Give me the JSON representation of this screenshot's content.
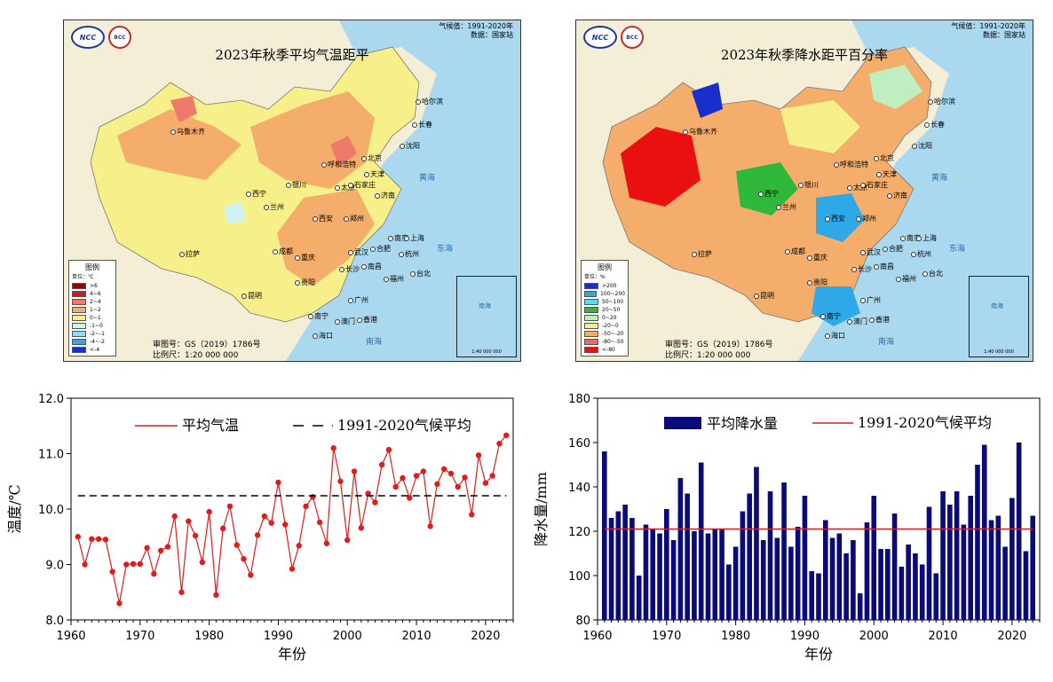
{
  "maps": [
    {
      "title": "2023年秋季平均气温距平",
      "meta_line1": "气候值：1991-2020年",
      "meta_line2": "数据：国家站",
      "logo_left": "NCC",
      "logo_right": "BCC",
      "legend_title": "图例",
      "legend_unit": "单位：℃",
      "legend_items": [
        {
          "label": ">6",
          "color": "#8b0a0a"
        },
        {
          "label": "4~6",
          "color": "#c81e1e"
        },
        {
          "label": "2~4",
          "color": "#ef7a6a"
        },
        {
          "label": "1~2",
          "color": "#f4ad6a"
        },
        {
          "label": "0~1",
          "color": "#f6ef8a"
        },
        {
          "label": "-1~0",
          "color": "#cdf2ef"
        },
        {
          "label": "-2~-1",
          "color": "#8fe0ec"
        },
        {
          "label": "-4~-2",
          "color": "#2fa8e8"
        },
        {
          "label": "<-4",
          "color": "#1a2ecc"
        }
      ],
      "approval": "审图号：GS（2019）1786号",
      "scale": "比例尺：1:20 000 000",
      "inset_label": "南海",
      "inset_scale": "1:40 000 000",
      "cities": [
        "乌鲁木齐",
        "哈尔滨",
        "长春",
        "沈阳",
        "北京",
        "呼和浩特",
        "天津",
        "银川",
        "太原",
        "石家庄",
        "济南",
        "西宁",
        "兰州",
        "郑州",
        "西安",
        "合肥",
        "南京",
        "上海",
        "武汉",
        "杭州",
        "成都",
        "重庆",
        "拉萨",
        "长沙",
        "南昌",
        "福州",
        "贵阳",
        "昆明",
        "台北",
        "广州",
        "南宁",
        "澳门",
        "香港",
        "海口"
      ],
      "seas": [
        "黄海",
        "东海",
        "南海"
      ]
    },
    {
      "title": "2023年秋季降水距平百分率",
      "meta_line1": "气候值：1991-2020年",
      "meta_line2": "数据：国家站",
      "logo_left": "NCC",
      "logo_right": "BCC",
      "legend_title": "图例",
      "legend_unit": "单位：%",
      "legend_items": [
        {
          "label": ">200",
          "color": "#1a2ecc"
        },
        {
          "label": "100~200",
          "color": "#2fa8e8"
        },
        {
          "label": "50~100",
          "color": "#55e0e8"
        },
        {
          "label": "20~50",
          "color": "#2fb83a"
        },
        {
          "label": "0~20",
          "color": "#bfeec0"
        },
        {
          "label": "-20~0",
          "color": "#f6ef8a"
        },
        {
          "label": "-50~-20",
          "color": "#f4ad6a"
        },
        {
          "label": "-80~-50",
          "color": "#ef6a5a"
        },
        {
          "label": "<-80",
          "color": "#e81010"
        }
      ],
      "approval": "审图号：GS（2019）1786号",
      "scale": "比例尺：1:20 000 000",
      "inset_label": "南海",
      "inset_scale": "1:40 000 000",
      "cities": [
        "乌鲁木齐",
        "哈尔滨",
        "长春",
        "沈阳",
        "北京",
        "呼和浩特",
        "天津",
        "银川",
        "太原",
        "石家庄",
        "济南",
        "西宁",
        "兰州",
        "郑州",
        "西安",
        "合肥",
        "南京",
        "上海",
        "武汉",
        "杭州",
        "成都",
        "重庆",
        "拉萨",
        "长沙",
        "南昌",
        "福州",
        "贵阳",
        "昆明",
        "台北",
        "广州",
        "南宁",
        "澳门",
        "香港",
        "海口"
      ],
      "seas": [
        "黄海",
        "东海",
        "南海"
      ]
    }
  ],
  "chart_data": [
    {
      "type": "line",
      "xlabel": "年份",
      "ylabel": "温度/℃",
      "xlim": [
        1960,
        2024
      ],
      "ylim": [
        8.0,
        12.0
      ],
      "xticks": [
        1960,
        1970,
        1980,
        1990,
        2000,
        2010,
        2020
      ],
      "yticks": [
        "8.0",
        "9.0",
        "10.0",
        "11.0",
        "12.0"
      ],
      "legend_position": "top",
      "series": [
        {
          "name": "平均气温",
          "color": "#e21b1b",
          "x": [
            1961,
            1962,
            1963,
            1964,
            1965,
            1966,
            1967,
            1968,
            1969,
            1970,
            1971,
            1972,
            1973,
            1974,
            1975,
            1976,
            1977,
            1978,
            1979,
            1980,
            1981,
            1982,
            1983,
            1984,
            1985,
            1986,
            1987,
            1988,
            1989,
            1990,
            1991,
            1992,
            1993,
            1994,
            1995,
            1996,
            1997,
            1998,
            1999,
            2000,
            2001,
            2002,
            2003,
            2004,
            2005,
            2006,
            2007,
            2008,
            2009,
            2010,
            2011,
            2012,
            2013,
            2014,
            2015,
            2016,
            2017,
            2018,
            2019,
            2020,
            2021,
            2022,
            2023
          ],
          "values": [
            9.5,
            9.0,
            9.46,
            9.46,
            9.45,
            8.87,
            8.3,
            9.0,
            9.01,
            9.01,
            9.3,
            8.83,
            9.25,
            9.32,
            9.87,
            8.5,
            9.78,
            9.52,
            9.04,
            9.95,
            8.45,
            9.65,
            10.05,
            9.35,
            9.1,
            8.81,
            9.53,
            9.87,
            9.75,
            10.48,
            9.72,
            8.92,
            9.34,
            10.05,
            10.22,
            9.76,
            9.38,
            11.1,
            10.5,
            9.44,
            10.68,
            9.66,
            10.28,
            10.12,
            10.8,
            11.07,
            10.4,
            10.56,
            10.2,
            10.6,
            10.68,
            9.69,
            10.45,
            10.72,
            10.64,
            10.4,
            10.57,
            9.9,
            10.97,
            10.47,
            10.6,
            11.18,
            11.33
          ]
        },
        {
          "name": "1991-2020气候平均",
          "color": "#000000",
          "x": [
            1961,
            2023
          ],
          "values": [
            10.24,
            10.24
          ]
        }
      ]
    },
    {
      "type": "bar",
      "xlabel": "年份",
      "ylabel": "降水量/mm",
      "xlim": [
        1960,
        2024
      ],
      "ylim": [
        80,
        180
      ],
      "xticks": [
        1960,
        1970,
        1980,
        1990,
        2000,
        2010,
        2020
      ],
      "yticks": [
        "80",
        "100",
        "120",
        "140",
        "160",
        "180"
      ],
      "legend_position": "top",
      "series": [
        {
          "name": "平均降水量",
          "color": "#0a0a78",
          "x": [
            1961,
            1962,
            1963,
            1964,
            1965,
            1966,
            1967,
            1968,
            1969,
            1970,
            1971,
            1972,
            1973,
            1974,
            1975,
            1976,
            1977,
            1978,
            1979,
            1980,
            1981,
            1982,
            1983,
            1984,
            1985,
            1986,
            1987,
            1988,
            1989,
            1990,
            1991,
            1992,
            1993,
            1994,
            1995,
            1996,
            1997,
            1998,
            1999,
            2000,
            2001,
            2002,
            2003,
            2004,
            2005,
            2006,
            2007,
            2008,
            2009,
            2010,
            2011,
            2012,
            2013,
            2014,
            2015,
            2016,
            2017,
            2018,
            2019,
            2020,
            2021,
            2022,
            2023
          ],
          "values": [
            156,
            126,
            129,
            132,
            126,
            100,
            123,
            121,
            119,
            130,
            116,
            144,
            137,
            120,
            151,
            119,
            121,
            121,
            105,
            113,
            129,
            137,
            149,
            116,
            138,
            117,
            142,
            113,
            122,
            136,
            102,
            101,
            125,
            117,
            119,
            110,
            116,
            92,
            124,
            136,
            112,
            112,
            128,
            104,
            114,
            110,
            105,
            131,
            101,
            138,
            132,
            138,
            123,
            136,
            150,
            159,
            125,
            127,
            113,
            135,
            160,
            111,
            127
          ]
        },
        {
          "name": "1991-2020气候平均",
          "color": "#d42020",
          "x": [
            1961,
            2023
          ],
          "values": [
            121,
            121
          ]
        }
      ]
    }
  ]
}
